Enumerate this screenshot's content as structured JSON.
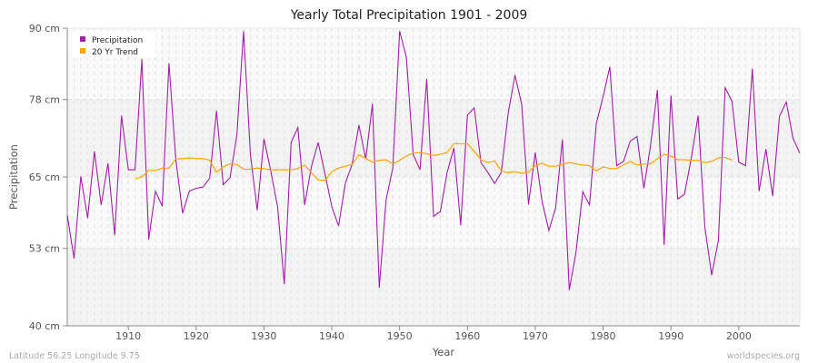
{
  "chart_data": {
    "type": "line",
    "title": "Yearly Total Precipitation 1901 - 2009",
    "xlabel": "Year",
    "ylabel": "Precipitation",
    "xlim": [
      1901,
      2009
    ],
    "ylim": [
      40,
      90
    ],
    "yticks": [
      40,
      53,
      65,
      78,
      90
    ],
    "ytick_labels": [
      "40 cm",
      "53 cm",
      "65 cm",
      "78 cm",
      "90 cm"
    ],
    "xticks": [
      1910,
      1920,
      1930,
      1940,
      1950,
      1960,
      1970,
      1980,
      1990,
      2000
    ],
    "grid": true,
    "legend_position": "top-left",
    "series": [
      {
        "name": "Precipitation",
        "color": "#a020a8",
        "x_start": 1901,
        "values": [
          58.6,
          51.3,
          65.1,
          58.1,
          69.3,
          60.3,
          67.3,
          55.2,
          75.3,
          66.2,
          66.2,
          84.8,
          54.5,
          62.6,
          60.1,
          84.1,
          68.0,
          58.9,
          62.6,
          63.1,
          63.3,
          64.8,
          76.1,
          63.7,
          64.9,
          72.0,
          89.5,
          68.8,
          59.4,
          71.4,
          66.0,
          60.0,
          47.0,
          70.8,
          73.3,
          60.3,
          66.8,
          70.8,
          65.5,
          60.0,
          56.8,
          64.0,
          67.1,
          73.7,
          68.0,
          77.3,
          46.4,
          61.2,
          66.5,
          89.5,
          85.1,
          68.8,
          66.2,
          81.5,
          58.4,
          59.2,
          65.7,
          69.9,
          56.9,
          75.4,
          76.6,
          67.4,
          65.8,
          63.9,
          65.8,
          75.7,
          82.1,
          77.2,
          60.4,
          69.1,
          60.9,
          56.0,
          59.8,
          71.3,
          46.0,
          52.3,
          62.5,
          60.3,
          74.0,
          78.5,
          83.5,
          66.9,
          67.6,
          71.0,
          71.8,
          63.1,
          70.3,
          79.6,
          53.6,
          78.7,
          61.3,
          62.1,
          68.2,
          75.3,
          56.6,
          48.5,
          54.3,
          80.0,
          77.7,
          67.5,
          66.9,
          83.2,
          62.6,
          69.7,
          61.8,
          75.2,
          77.6,
          71.5,
          69.0
        ]
      },
      {
        "name": "20 Yr Trend",
        "color": "#ffa500",
        "x_start": 1911,
        "values": [
          64.7,
          65.0,
          66.1,
          66.1,
          66.5,
          66.5,
          68.0,
          68.1,
          68.2,
          68.1,
          68.1,
          67.8,
          65.8,
          66.7,
          67.2,
          67.1,
          66.3,
          66.3,
          66.5,
          66.4,
          66.2,
          66.2,
          66.2,
          66.2,
          66.4,
          67.0,
          65.7,
          64.5,
          64.4,
          65.9,
          66.5,
          66.8,
          67.1,
          68.7,
          68.1,
          67.5,
          67.8,
          67.9,
          67.2,
          67.8,
          68.5,
          69.0,
          69.1,
          68.9,
          68.6,
          68.8,
          69.1,
          70.6,
          70.6,
          70.6,
          69.3,
          67.9,
          67.4,
          67.7,
          66.0,
          65.7,
          65.9,
          65.6,
          65.8,
          66.9,
          67.3,
          66.8,
          66.8,
          67.1,
          67.4,
          67.2,
          67.0,
          66.9,
          66.0,
          66.7,
          66.4,
          66.4,
          67.0,
          67.6,
          67.0,
          67.2,
          67.2,
          68.1,
          68.8,
          68.5,
          67.9,
          67.9,
          67.8,
          67.8,
          67.4,
          67.6,
          68.2,
          68.3,
          67.8
        ]
      }
    ]
  },
  "footer": {
    "location": "Latitude 56.25 Longitude 9.75",
    "site": "worldspecies.org"
  }
}
